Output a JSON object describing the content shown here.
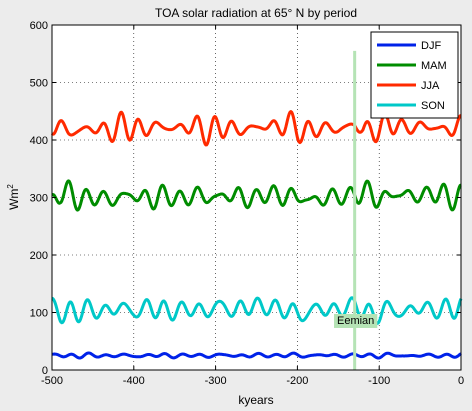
{
  "chart_data": {
    "type": "line",
    "title": "TOA solar radiation at 65° N by period",
    "xlabel": "kyears",
    "ylabel_base": "Wm",
    "ylabel_sup": "2",
    "xlim": [
      -500,
      0
    ],
    "ylim": [
      0,
      600
    ],
    "xticks": [
      -500,
      -400,
      -300,
      -200,
      -100,
      0
    ],
    "yticks": [
      0,
      100,
      200,
      300,
      400,
      500,
      600
    ],
    "xtick_labels": [
      "-500",
      "-400",
      "-300",
      "-200",
      "-100",
      "0"
    ],
    "ytick_labels": [
      "0",
      "100",
      "200",
      "300",
      "400",
      "500",
      "600"
    ],
    "grid": true,
    "legend_position": "top-right",
    "annotation": {
      "text": "Eemian",
      "x": -130,
      "line_top": 555,
      "line_bottom": 0,
      "color": "#b5e3b5"
    },
    "series": [
      {
        "name": "DJF",
        "color": "#0022e8",
        "mean": 25,
        "amp": [
          3,
          2,
          1.5
        ],
        "periods": [
          23,
          19,
          41
        ],
        "phases": [
          0.3,
          1.1,
          2.0
        ],
        "mod_period": 100,
        "mod_phase": 0.5,
        "anchors": [
          [
            -500,
            26
          ],
          [
            -400,
            25
          ],
          [
            -300,
            26
          ],
          [
            -200,
            27
          ],
          [
            -100,
            26
          ],
          [
            0,
            25
          ]
        ]
      },
      {
        "name": "MAM",
        "color": "#008c00",
        "mean": 300,
        "amp": [
          17,
          11,
          5
        ],
        "periods": [
          23,
          19,
          41
        ],
        "phases": [
          1.0,
          2.4,
          0.6
        ],
        "mod_period": 100,
        "mod_phase": 1.2,
        "anchors": [
          [
            -500,
            280
          ],
          [
            -490,
            325
          ],
          [
            -450,
            290
          ],
          [
            -400,
            305
          ],
          [
            -350,
            300
          ],
          [
            -300,
            310
          ],
          [
            -250,
            300
          ],
          [
            -220,
            330
          ],
          [
            -200,
            285
          ],
          [
            -150,
            300
          ],
          [
            -130,
            330
          ],
          [
            -100,
            310
          ],
          [
            -50,
            320
          ],
          [
            -10,
            320
          ],
          [
            0,
            290
          ]
        ]
      },
      {
        "name": "JJA",
        "color": "#ff2a00",
        "mean": 420,
        "amp": [
          15,
          9,
          5
        ],
        "periods": [
          23,
          19,
          41
        ],
        "phases": [
          2.1,
          0.7,
          1.9
        ],
        "mod_period": 100,
        "mod_phase": 2.2,
        "anchors": [
          [
            -500,
            440
          ],
          [
            -480,
            405
          ],
          [
            -400,
            425
          ],
          [
            -350,
            430
          ],
          [
            -300,
            415
          ],
          [
            -250,
            420
          ],
          [
            -220,
            455
          ],
          [
            -200,
            410
          ],
          [
            -150,
            420
          ],
          [
            -130,
            445
          ],
          [
            -120,
            390
          ],
          [
            -100,
            440
          ],
          [
            -50,
            430
          ],
          [
            0,
            420
          ]
        ]
      },
      {
        "name": "SON",
        "color": "#00c8c8",
        "mean": 105,
        "amp": [
          17,
          9,
          5
        ],
        "periods": [
          23,
          19,
          41
        ],
        "phases": [
          0.5,
          1.7,
          2.8
        ],
        "mod_period": 100,
        "mod_phase": 0.9,
        "anchors": [
          [
            -500,
            120
          ],
          [
            -490,
            90
          ],
          [
            -400,
            110
          ],
          [
            -350,
            100
          ],
          [
            -300,
            110
          ],
          [
            -230,
            130
          ],
          [
            -210,
            80
          ],
          [
            -150,
            110
          ],
          [
            -130,
            130
          ],
          [
            -110,
            80
          ],
          [
            -50,
            110
          ],
          [
            0,
            110
          ]
        ]
      }
    ]
  }
}
